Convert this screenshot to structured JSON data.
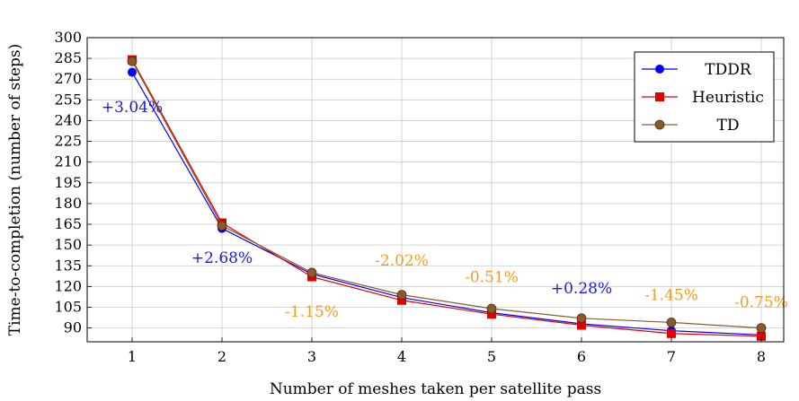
{
  "chart_data": {
    "type": "line",
    "title": "",
    "xlabel": "Number of meshes taken per satellite pass",
    "ylabel": "Time-to-completion (number of steps)",
    "x": [
      1,
      2,
      3,
      4,
      5,
      6,
      7,
      8
    ],
    "xlim": [
      0.5,
      8.25
    ],
    "ylim": [
      80,
      300
    ],
    "yticks": [
      90,
      105,
      120,
      135,
      150,
      165,
      180,
      195,
      210,
      225,
      240,
      255,
      270,
      285,
      300
    ],
    "grid": true,
    "legend_position": "top-right",
    "series": [
      {
        "name": "TDDR",
        "color": "#0000ff",
        "marker": "circle",
        "values": [
          275,
          162,
          129,
          112,
          101,
          93,
          88,
          85
        ]
      },
      {
        "name": "Heuristic",
        "color": "#e00000",
        "marker": "square",
        "values": [
          284,
          166,
          127,
          110,
          100,
          92,
          86,
          84
        ]
      },
      {
        "name": "TD",
        "color": "#8b5a2b",
        "marker": "circle",
        "values": [
          283,
          164,
          130,
          114,
          104,
          97,
          94,
          90
        ]
      }
    ],
    "annotations": [
      {
        "text": "+3.04%",
        "x": 1,
        "y": 250,
        "color": "#1a1adb"
      },
      {
        "text": "+2.68%",
        "x": 2,
        "y": 141,
        "color": "#1a1adb"
      },
      {
        "text": "-1.15%",
        "x": 3,
        "y": 102,
        "color": "#f39c1f"
      },
      {
        "text": "-2.02%",
        "x": 4,
        "y": 139,
        "color": "#f39c1f"
      },
      {
        "text": "-0.51%",
        "x": 5,
        "y": 127,
        "color": "#f39c1f"
      },
      {
        "text": "+0.28%",
        "x": 6,
        "y": 119,
        "color": "#1a1adb"
      },
      {
        "text": "-1.45%",
        "x": 7,
        "y": 114,
        "color": "#f39c1f"
      },
      {
        "text": "-0.75%",
        "x": 8,
        "y": 109,
        "color": "#f39c1f"
      }
    ]
  }
}
